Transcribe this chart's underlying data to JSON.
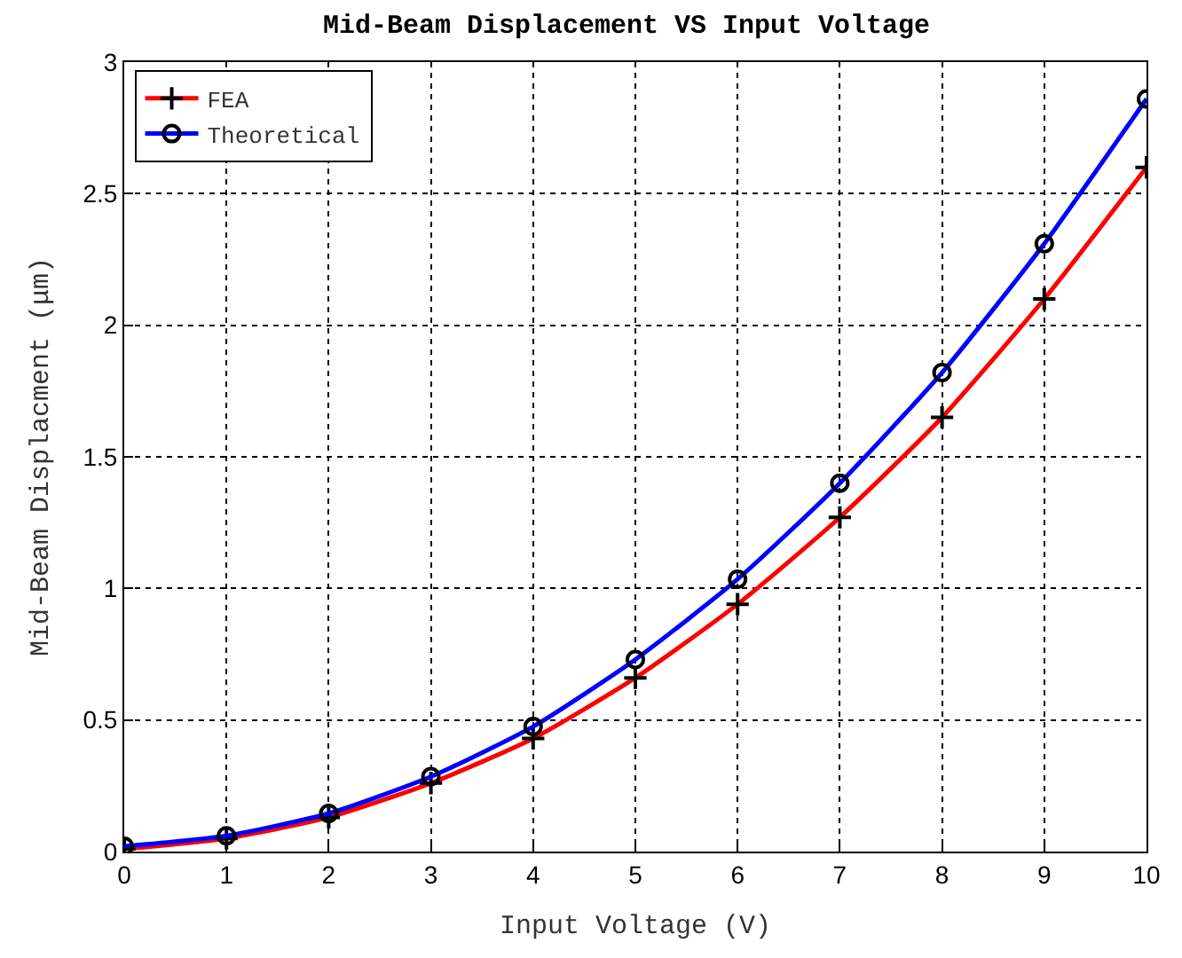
{
  "chart_data": {
    "type": "line",
    "title": "Mid-Beam Displacement VS Input Voltage",
    "xlabel": "Input Voltage (V)",
    "ylabel": "Mid-Beam Displacment (μm)",
    "x": [
      0,
      1,
      2,
      3,
      4,
      5,
      6,
      7,
      8,
      9,
      10
    ],
    "series": [
      {
        "name": "FEA",
        "color": "#ff0000",
        "marker": "cross",
        "values": [
          0.01,
          0.05,
          0.13,
          0.26,
          0.43,
          0.66,
          0.94,
          1.27,
          1.65,
          2.1,
          2.6
        ]
      },
      {
        "name": "Theoretical",
        "color": "#0000ff",
        "marker": "circle",
        "values": [
          0.02,
          0.06,
          0.145,
          0.285,
          0.475,
          0.73,
          1.035,
          1.4,
          1.82,
          2.31,
          2.86
        ]
      }
    ],
    "xlim": [
      0,
      10
    ],
    "ylim": [
      0,
      3
    ],
    "xticks": [
      0,
      1,
      2,
      3,
      4,
      5,
      6,
      7,
      8,
      9,
      10
    ],
    "yticks": [
      0,
      0.5,
      1,
      1.5,
      2,
      2.5,
      3
    ],
    "grid": true,
    "legend": "top left",
    "line_style": "solid"
  }
}
